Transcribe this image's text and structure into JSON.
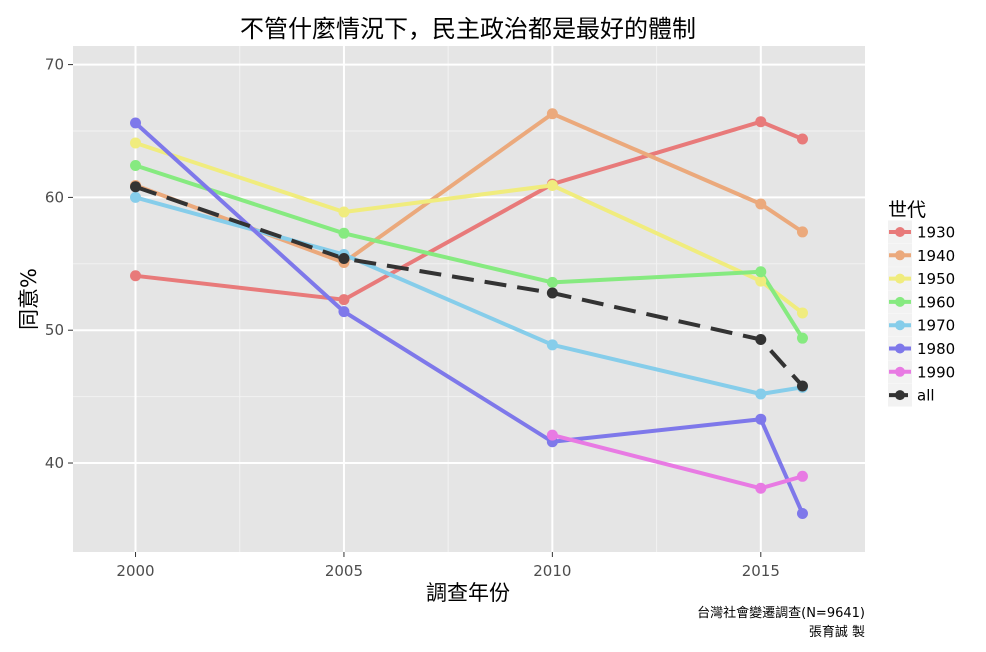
{
  "chart_data": {
    "type": "line",
    "title": "不管什麼情況下，民主政治都是最好的體制",
    "xlabel": "調查年份",
    "ylabel": "同意%",
    "xlim": [
      1998.5,
      2017.5
    ],
    "ylim": [
      33.3,
      71.4
    ],
    "xticks": [
      2000,
      2005,
      2010,
      2015
    ],
    "yticks": [
      40,
      50,
      60,
      70
    ],
    "grid": true,
    "legend_title": "世代",
    "legend_position": "right",
    "caption": [
      "台灣社會變遷調查(N=9641)",
      "張育誠 製"
    ],
    "series": [
      {
        "name": "1930",
        "color": "#e87a7a",
        "dashed": false,
        "points": [
          [
            2000,
            54.1
          ],
          [
            2005,
            52.3
          ],
          [
            2010,
            61.0
          ],
          [
            2015,
            65.7
          ],
          [
            2016,
            64.4
          ]
        ]
      },
      {
        "name": "1940",
        "color": "#eba97c",
        "dashed": false,
        "points": [
          [
            2000,
            60.9
          ],
          [
            2005,
            55.1
          ],
          [
            2010,
            66.3
          ],
          [
            2015,
            59.5
          ],
          [
            2016,
            57.4
          ]
        ]
      },
      {
        "name": "1950",
        "color": "#f0ec7e",
        "dashed": false,
        "points": [
          [
            2000,
            64.1
          ],
          [
            2005,
            58.9
          ],
          [
            2010,
            60.9
          ],
          [
            2015,
            53.7
          ],
          [
            2016,
            51.3
          ]
        ]
      },
      {
        "name": "1960",
        "color": "#86ea80",
        "dashed": false,
        "points": [
          [
            2000,
            62.4
          ],
          [
            2005,
            57.3
          ],
          [
            2010,
            53.6
          ],
          [
            2015,
            54.4
          ],
          [
            2016,
            49.4
          ]
        ]
      },
      {
        "name": "1970",
        "color": "#86cdea",
        "dashed": false,
        "points": [
          [
            2000,
            60.0
          ],
          [
            2005,
            55.7
          ],
          [
            2010,
            48.9
          ],
          [
            2015,
            45.2
          ],
          [
            2016,
            45.7
          ]
        ]
      },
      {
        "name": "1980",
        "color": "#7e78ea",
        "dashed": false,
        "points": [
          [
            2000,
            65.6
          ],
          [
            2005,
            51.4
          ],
          [
            2010,
            41.6
          ],
          [
            2015,
            43.3
          ],
          [
            2016,
            36.2
          ]
        ]
      },
      {
        "name": "1990",
        "color": "#e87ae3",
        "dashed": false,
        "points": [
          [
            2010,
            42.1
          ],
          [
            2015,
            38.1
          ],
          [
            2016,
            39.0
          ]
        ]
      },
      {
        "name": "all",
        "color": "#333333",
        "dashed": true,
        "points": [
          [
            2000,
            60.8
          ],
          [
            2005,
            55.4
          ],
          [
            2010,
            52.8
          ],
          [
            2015,
            49.3
          ],
          [
            2016,
            45.8
          ]
        ]
      }
    ]
  }
}
